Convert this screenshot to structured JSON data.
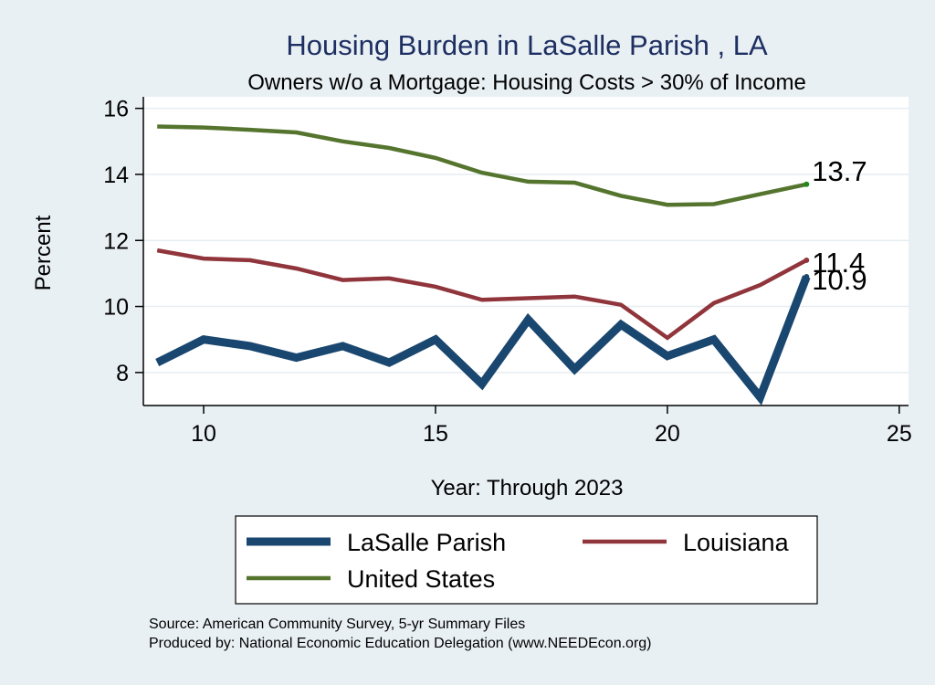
{
  "chart_data": {
    "type": "line",
    "title": "Housing Burden in LaSalle Parish , LA",
    "subtitle": "Owners w/o a Mortgage: Housing Costs > 30% of Income",
    "xlabel": "Year: Through 2023",
    "ylabel": "Percent",
    "xlim": [
      8.7,
      25.2
    ],
    "ylim": [
      7.0,
      16.35
    ],
    "xticks": [
      10,
      15,
      20,
      25
    ],
    "yticks": [
      8,
      10,
      12,
      14,
      16
    ],
    "grid": true,
    "legend_position": "bottom",
    "x": [
      9,
      10,
      11,
      12,
      13,
      14,
      15,
      16,
      17,
      18,
      19,
      20,
      21,
      22,
      23
    ],
    "series": [
      {
        "name": "LaSalle Parish",
        "color": "#1a476f",
        "values": [
          8.3,
          9.0,
          8.8,
          8.45,
          8.8,
          8.3,
          9.0,
          7.65,
          9.6,
          8.1,
          9.45,
          8.5,
          9.0,
          7.25,
          10.9
        ],
        "end_label": "10.9"
      },
      {
        "name": "Louisiana",
        "color": "#90353b",
        "values": [
          11.7,
          11.45,
          11.4,
          11.15,
          10.8,
          10.85,
          10.6,
          10.2,
          10.25,
          10.3,
          10.05,
          9.05,
          10.1,
          10.65,
          11.4
        ],
        "end_label": "11.4"
      },
      {
        "name": "United States",
        "color": "#55752f",
        "values": [
          15.45,
          15.42,
          15.35,
          15.27,
          15.0,
          14.8,
          14.5,
          14.05,
          13.78,
          13.75,
          13.35,
          13.08,
          13.1,
          13.4,
          13.7
        ],
        "end_label": "13.7"
      }
    ]
  },
  "notes": {
    "source": "Source: American Community Survey, 5-yr Summary Files",
    "produced_by": "Produced by: National Economic Education Delegation (www.NEEDEcon.org)"
  }
}
